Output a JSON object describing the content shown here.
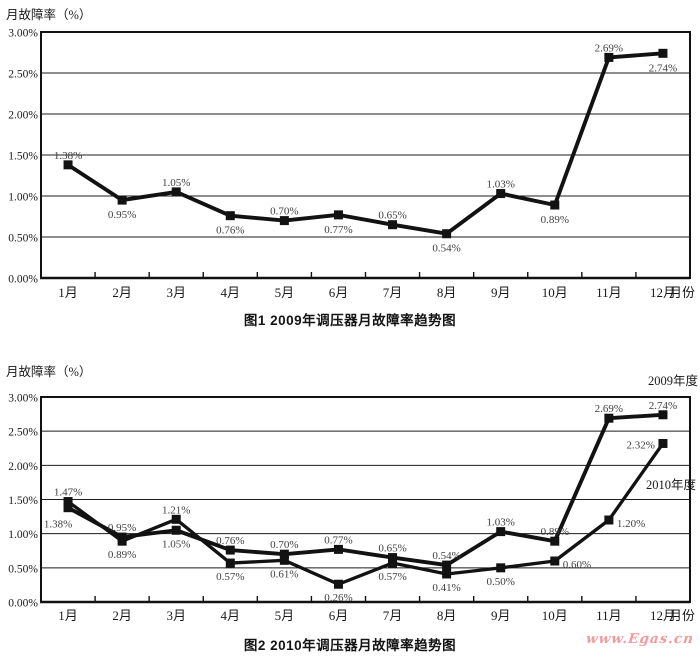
{
  "watermark": {
    "text": "www.Egas.cn",
    "color": "#f09c9c"
  },
  "colors": {
    "line": "#121212",
    "grid": "#1c1c1c",
    "text": "#1a1a1a",
    "data_label": "#3f3f3f",
    "background": "#ffffff"
  },
  "chart_data": [
    {
      "type": "line",
      "title": "图1 2009年调压器月故障率趋势图",
      "ylabel": "月故障率（%）",
      "xlabel": "月份",
      "ylim": [
        0,
        3
      ],
      "grid": true,
      "legend_position": "none",
      "y_tick_labels": [
        "3.00%",
        "2.50%",
        "2.00%",
        "1.50%",
        "1.00%",
        "0.50%",
        "0.00%"
      ],
      "categories": [
        "1月",
        "2月",
        "3月",
        "4月",
        "5月",
        "6月",
        "7月",
        "8月",
        "9月",
        "10月",
        "11月",
        "12月"
      ],
      "series": [
        {
          "name": "2009年度",
          "values": [
            1.38,
            0.95,
            1.05,
            0.76,
            0.7,
            0.77,
            0.65,
            0.54,
            1.03,
            0.89,
            2.69,
            2.74
          ],
          "point_labels": [
            "1.38%",
            "0.95%",
            "1.05%",
            "0.76%",
            "0.70%",
            "0.77%",
            "0.65%",
            "0.54%",
            "1.03%",
            "0.89%",
            "2.69%",
            "2.74%"
          ],
          "label_positions": [
            "above",
            "below",
            "above",
            "below",
            "above",
            "below",
            "above",
            "below",
            "above",
            "below",
            "above",
            "below"
          ]
        }
      ]
    },
    {
      "type": "line",
      "title": "图2 2010年调压器月故障率趋势图",
      "ylabel": "月故障率（%）",
      "xlabel": "月份",
      "ylim": [
        0,
        3
      ],
      "grid": true,
      "legend_position": "inline-right",
      "y_tick_labels": [
        "3.00%",
        "2.50%",
        "2.00%",
        "1.50%",
        "1.00%",
        "0.50%",
        "0.00%"
      ],
      "categories": [
        "1月",
        "2月",
        "3月",
        "4月",
        "5月",
        "6月",
        "7月",
        "8月",
        "9月",
        "10月",
        "11月",
        "12月"
      ],
      "series": [
        {
          "name": "2009年度",
          "values": [
            1.38,
            0.95,
            1.05,
            0.76,
            0.7,
            0.77,
            0.65,
            0.54,
            1.03,
            0.89,
            2.69,
            2.74
          ],
          "point_labels": [
            "1.38%",
            "0.95%",
            "1.05%",
            "0.76%",
            "0.70%",
            "0.77%",
            "0.65%",
            "0.54%",
            "1.03%",
            "0.89%",
            "2.69%",
            "2.74%"
          ],
          "label_positions": [
            "below-left",
            "above",
            "below",
            "above",
            "above",
            "above",
            "above",
            "above",
            "above",
            "above",
            "above",
            "above"
          ]
        },
        {
          "name": "2010年度",
          "values": [
            1.47,
            0.89,
            1.21,
            0.57,
            0.61,
            0.26,
            0.57,
            0.41,
            0.5,
            0.6,
            1.2,
            2.32
          ],
          "point_labels": [
            "1.47%",
            "0.89%",
            "1.21%",
            "0.57%",
            "0.61%",
            "0.26%",
            "0.57%",
            "0.41%",
            "0.50%",
            "0.60%",
            "1.20%",
            "2.32%"
          ],
          "label_positions": [
            "above",
            "below",
            "above",
            "below",
            "below",
            "below",
            "below",
            "below",
            "below",
            "right",
            "right",
            "left"
          ]
        }
      ]
    }
  ]
}
